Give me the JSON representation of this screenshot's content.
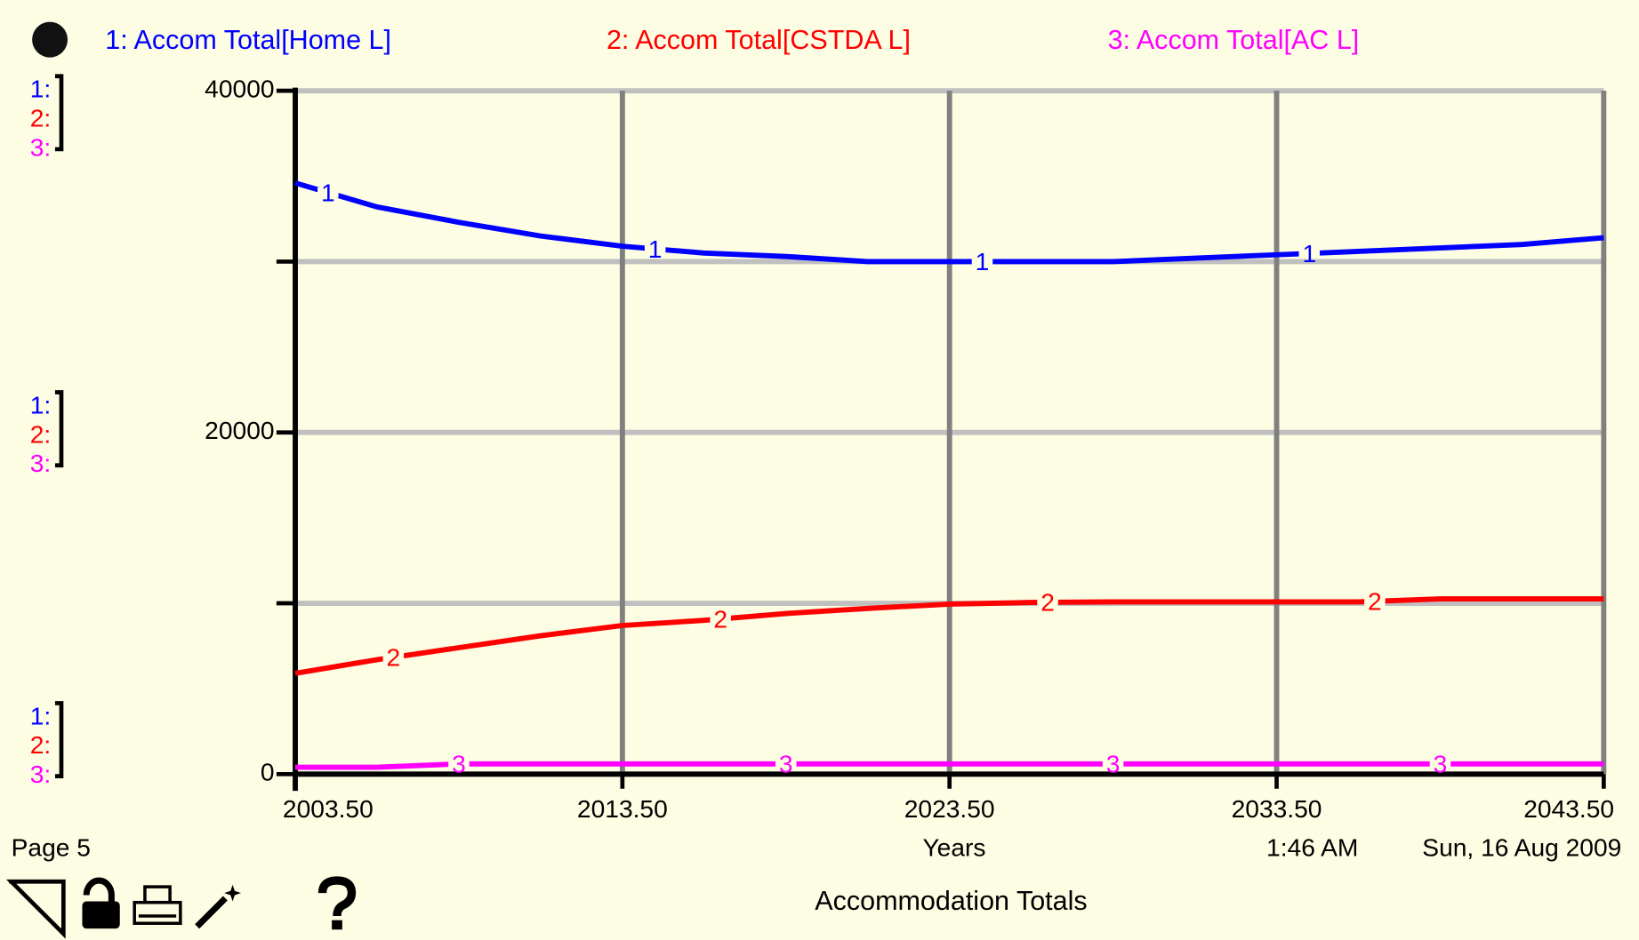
{
  "chart_data": {
    "type": "line",
    "title": "Accommodation Totals",
    "xlabel": "Years",
    "page": "Page 5",
    "time": "1:46 AM",
    "date": "Sun, 16 Aug 2009",
    "scale_labels": [
      "1:",
      "2:",
      "3:"
    ],
    "x": [
      2003.5,
      2006,
      2008.5,
      2011,
      2013.5,
      2016,
      2018.5,
      2021,
      2023.5,
      2026,
      2028.5,
      2031,
      2033.5,
      2036,
      2038.5,
      2041,
      2043.5
    ],
    "series": [
      {
        "name": "1: Accom Total[Home L]",
        "tag": "1",
        "color": "#0000ff",
        "values": [
          34600,
          33200,
          32300,
          31500,
          30900,
          30500,
          30300,
          30000,
          30000,
          30000,
          30000,
          30200,
          30400,
          30600,
          30800,
          31000,
          31400
        ]
      },
      {
        "name": "2: Accom Total[CSTDA L]",
        "tag": "2",
        "color": "#ff0000",
        "values": [
          5900,
          6700,
          7400,
          8100,
          8700,
          9000,
          9400,
          9700,
          9950,
          10050,
          10080,
          10080,
          10080,
          10080,
          10260,
          10260,
          10260
        ]
      },
      {
        "name": "3: Accom Total[AC L]",
        "tag": "3",
        "color": "#ff00ff",
        "values": [
          400,
          400,
          600,
          600,
          600,
          600,
          600,
          600,
          600,
          600,
          600,
          600,
          600,
          600,
          600,
          600,
          600
        ]
      }
    ],
    "xlim": [
      2003.5,
      2043.5
    ],
    "xticks": [
      {
        "value": 2003.5,
        "label": "2003.50"
      },
      {
        "value": 2013.5,
        "label": "2013.50"
      },
      {
        "value": 2023.5,
        "label": "2023.50"
      },
      {
        "value": 2033.5,
        "label": "2033.50"
      },
      {
        "value": 2043.5,
        "label": "2043.50"
      }
    ],
    "ylim": [
      0,
      40000
    ],
    "yticks": [
      0,
      20000,
      40000
    ],
    "yminor": [
      10000,
      30000
    ],
    "grid": true
  }
}
